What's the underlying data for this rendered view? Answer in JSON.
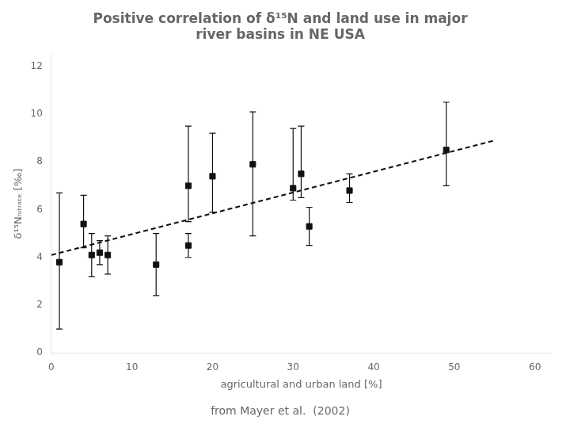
{
  "chart_data": {
    "type": "scatter",
    "title": "Positive correlation of δ¹⁵N and land use in major\nriver basins in NE USA",
    "x_label": "agricultural and urban land [%]",
    "y_label": "δ¹⁵Nₙᵢₜᵣₐₜₑ [‰]",
    "annotations": [
      "from Mayer et al.  (2002)"
    ],
    "xlim": [
      0,
      62
    ],
    "ylim": [
      0,
      12.5
    ],
    "xticks": [
      0,
      10,
      20,
      30,
      40,
      50,
      60
    ],
    "yticks": [
      0,
      2,
      4,
      6,
      8,
      10,
      12
    ],
    "grid": false,
    "series": [
      {
        "type": "scatter",
        "marker": "square",
        "color": "#111111",
        "x": [
          1,
          4,
          5,
          6,
          7,
          13,
          17,
          17,
          20,
          25,
          30,
          31,
          32,
          37,
          49
        ],
        "values": [
          3.8,
          5.4,
          4.1,
          4.2,
          4.1,
          3.7,
          7.0,
          4.5,
          7.4,
          7.9,
          6.9,
          7.5,
          5.3,
          6.8,
          8.5
        ],
        "error_low": [
          2.8,
          1.0,
          0.9,
          0.5,
          0.8,
          1.3,
          1.5,
          0.5,
          1.5,
          3.0,
          0.5,
          1.0,
          0.8,
          0.5,
          1.5
        ],
        "error_high": [
          2.9,
          1.2,
          0.9,
          0.5,
          0.8,
          1.3,
          2.5,
          0.5,
          1.8,
          2.2,
          2.5,
          2.0,
          0.8,
          0.7,
          2.0
        ]
      },
      {
        "type": "line",
        "line_style": "dashed",
        "color": "#111111",
        "x": [
          0,
          55
        ],
        "values": [
          4.1,
          8.9
        ]
      }
    ]
  }
}
